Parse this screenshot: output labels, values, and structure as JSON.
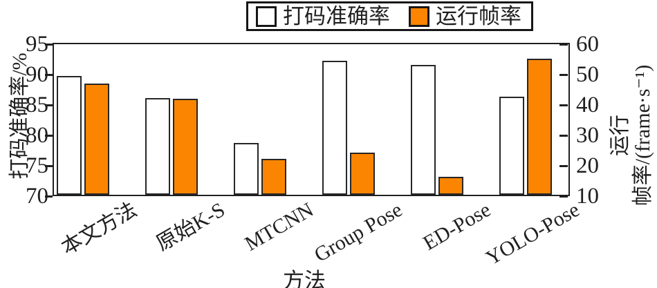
{
  "figure": {
    "background": "#ffffff"
  },
  "colors": {
    "accuracy_fill": "#ffffff",
    "fps_fill": "#FB8500",
    "edge": "#1f1f1f"
  },
  "legend": {
    "items": [
      {
        "label": "打码准确率",
        "swatch": "accuracy-white"
      },
      {
        "label": "运行帧率",
        "swatch": "fps-orange"
      }
    ]
  },
  "chart_data": {
    "type": "bar",
    "categories": [
      "本文方法",
      "原始K-S",
      "MTCNN",
      "Group Pose",
      "ED-Pose",
      "YOLO-Pose"
    ],
    "series": [
      {
        "name": "打码准确率",
        "axis": "left",
        "color": "#ffffff",
        "values": [
          89.8,
          86.1,
          78.6,
          92.4,
          91.7,
          86.4
        ]
      },
      {
        "name": "运行帧率",
        "axis": "right",
        "color": "#FB8500",
        "values": [
          47,
          42,
          22,
          24,
          16,
          55.5
        ]
      }
    ],
    "left_axis": {
      "label": "打码准确率/%",
      "range": [
        70,
        95
      ],
      "ticks": [
        70,
        75,
        80,
        85,
        90,
        95
      ]
    },
    "right_axis": {
      "label_lines": [
        "运行",
        "帧率/(frame·s⁻¹)"
      ],
      "range": [
        10,
        60
      ],
      "ticks": [
        10,
        20,
        30,
        40,
        50,
        60
      ]
    },
    "xlabel": "方法",
    "title": "",
    "grid": false,
    "legend_position": "top-center-outside"
  }
}
